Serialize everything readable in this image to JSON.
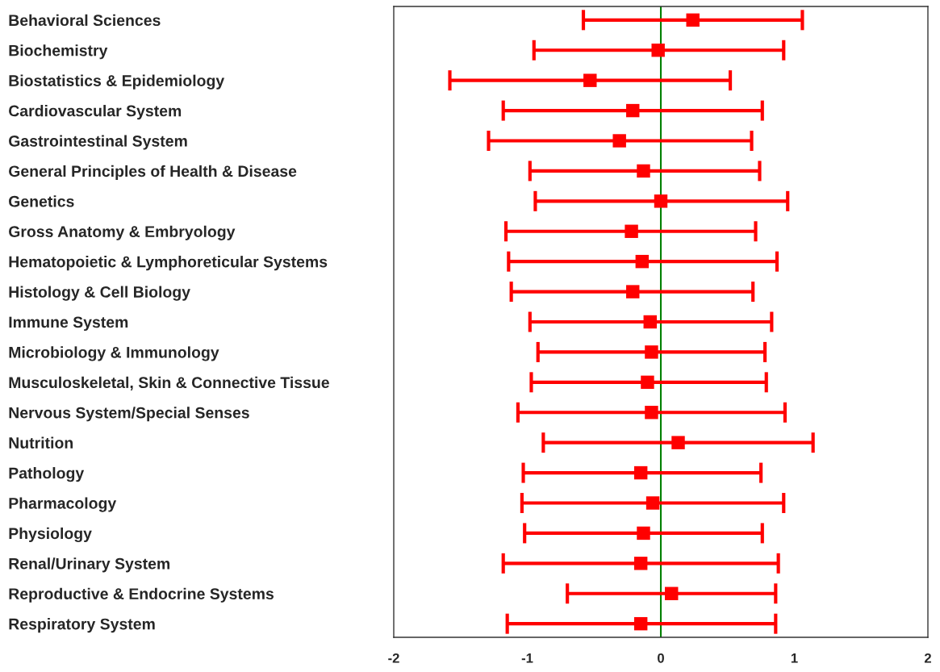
{
  "chart_data": {
    "type": "scatter",
    "orientation": "horizontal",
    "categories": [
      "Behavioral Sciences",
      "Biochemistry",
      "Biostatistics & Epidemiology",
      "Cardiovascular System",
      "Gastrointestinal System",
      "General Principles of Health & Disease",
      "Genetics",
      "Gross Anatomy & Embryology",
      "Hematopoietic & Lymphoreticular Systems",
      "Histology & Cell Biology",
      "Immune System",
      "Microbiology & Immunology",
      "Musculoskeletal, Skin & Connective Tissue",
      "Nervous System/Special Senses",
      "Nutrition",
      "Pathology",
      "Pharmacology",
      "Physiology",
      "Renal/Urinary System",
      "Reproductive & Endocrine Systems",
      "Respiratory System"
    ],
    "values": [
      0.24,
      -0.02,
      -0.53,
      -0.21,
      -0.31,
      -0.13,
      0.0,
      -0.22,
      -0.14,
      -0.21,
      -0.08,
      -0.07,
      -0.1,
      -0.07,
      0.13,
      -0.15,
      -0.06,
      -0.13,
      -0.15,
      0.08,
      -0.15
    ],
    "errors": [
      [
        -0.58,
        1.06
      ],
      [
        -0.95,
        0.92
      ],
      [
        -1.58,
        0.52
      ],
      [
        -1.18,
        0.76
      ],
      [
        -1.29,
        0.68
      ],
      [
        -0.98,
        0.74
      ],
      [
        -0.94,
        0.95
      ],
      [
        -1.16,
        0.71
      ],
      [
        -1.14,
        0.87
      ],
      [
        -1.12,
        0.69
      ],
      [
        -0.98,
        0.83
      ],
      [
        -0.92,
        0.78
      ],
      [
        -0.97,
        0.79
      ],
      [
        -1.07,
        0.93
      ],
      [
        -0.88,
        1.14
      ],
      [
        -1.03,
        0.75
      ],
      [
        -1.04,
        0.92
      ],
      [
        -1.02,
        0.76
      ],
      [
        -1.18,
        0.88
      ],
      [
        -0.7,
        0.86
      ],
      [
        -1.15,
        0.86
      ]
    ],
    "color": "#ff0000",
    "marker": "square",
    "xlim": [
      -2,
      2
    ],
    "xticks": [
      -2,
      -1,
      0,
      1,
      2
    ],
    "ref_lines": [
      {
        "axis": "x",
        "value": 0,
        "color": "#008000"
      }
    ],
    "grid": false,
    "legend": false
  }
}
